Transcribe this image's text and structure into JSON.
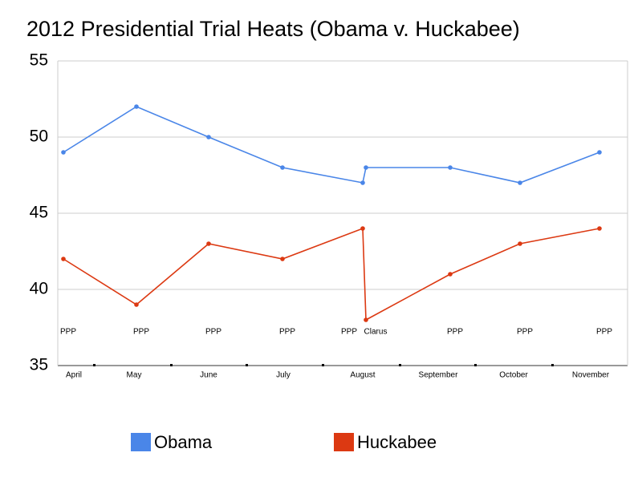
{
  "chart_data": {
    "type": "line",
    "title": "2012 Presidential Trial Heats (Obama v. Huckabee)",
    "categories": [
      "PPP",
      "PPP",
      "PPP",
      "PPP",
      "PPP",
      "Clarus",
      "PPP",
      "PPP",
      "PPP"
    ],
    "months": [
      "April",
      "May",
      "June",
      "July",
      "August",
      "September",
      "October",
      "November"
    ],
    "series": [
      {
        "name": "Obama",
        "color": "#4a86e8",
        "values": [
          49,
          52,
          50,
          48,
          47,
          48,
          48,
          47,
          49
        ]
      },
      {
        "name": "Huckabee",
        "color": "#dc3912",
        "values": [
          42,
          39,
          43,
          42,
          44,
          38,
          41,
          43,
          44
        ]
      }
    ],
    "ylim": [
      35,
      55
    ],
    "yticks": [
      35,
      40,
      45,
      50,
      55
    ],
    "grid": true,
    "legend": "bottom"
  }
}
